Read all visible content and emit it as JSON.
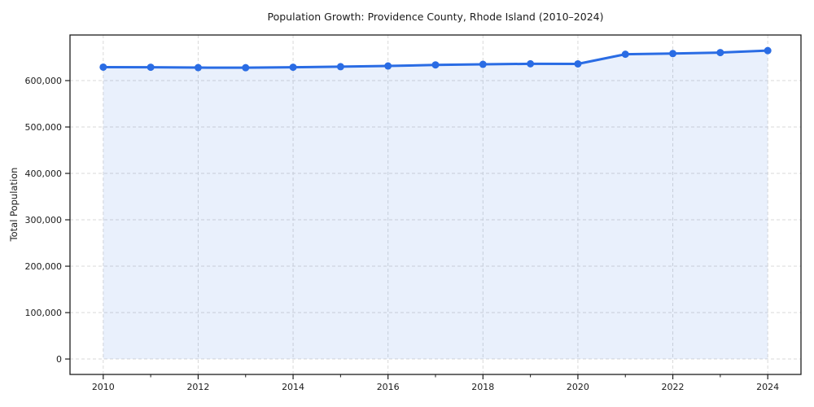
{
  "chart_data": {
    "type": "area",
    "title": "Population Growth: Providence County, Rhode Island (2010–2024)",
    "xlabel": "",
    "ylabel": "Total Population",
    "x": [
      2010,
      2011,
      2012,
      2013,
      2014,
      2015,
      2016,
      2017,
      2018,
      2019,
      2020,
      2021,
      2022,
      2023,
      2024
    ],
    "series": [
      {
        "name": "Total Population",
        "values": [
          629000,
          628800,
          628000,
          627800,
          628800,
          630000,
          631500,
          633800,
          635000,
          636200,
          636000,
          656800,
          658300,
          660400,
          664600
        ]
      }
    ],
    "xlim": [
      2009.3,
      2024.7
    ],
    "ylim": [
      -33250,
      698250
    ],
    "x_major_ticks": [
      2010,
      2012,
      2014,
      2016,
      2018,
      2020,
      2022,
      2024
    ],
    "x_minor_ticks": [
      2011,
      2013,
      2015,
      2017,
      2019,
      2021,
      2023
    ],
    "y_ticks": [
      0,
      100000,
      200000,
      300000,
      400000,
      500000,
      600000
    ],
    "grid": true,
    "grid_style": "dashed",
    "legend": "none",
    "colors": {
      "line": "#2a6ce4",
      "marker": "#2a6ce4",
      "fill": "#2a6ce4",
      "fill_opacity": 0.1,
      "grid": "#d9d9d9",
      "spine": "#1c1c1c",
      "tick": "#1c1c1c",
      "text": "#1c1c1c",
      "background": "#ffffff"
    }
  }
}
